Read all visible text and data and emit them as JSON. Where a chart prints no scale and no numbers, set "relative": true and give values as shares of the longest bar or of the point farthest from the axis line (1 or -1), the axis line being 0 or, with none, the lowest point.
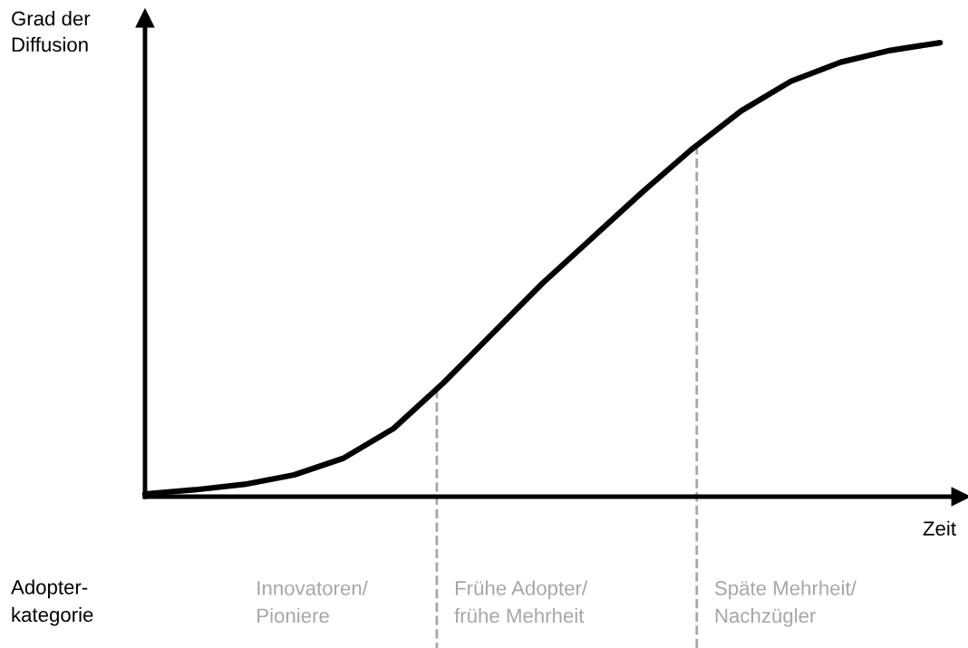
{
  "chart_data": {
    "type": "line",
    "relative": true,
    "ylabel": "Grad der\nDiffusion",
    "xlabel": "Zeit",
    "categories": [
      null,
      null,
      null,
      null,
      null,
      null,
      null,
      null,
      null,
      null,
      null,
      null,
      null,
      null,
      null,
      null,
      null
    ],
    "series": [
      {
        "color": "#000000",
        "values": [
          0.006,
          0.015,
          0.027,
          0.048,
          0.085,
          0.15,
          0.25,
          0.36,
          0.47,
          0.57,
          0.67,
          0.765,
          0.85,
          0.915,
          0.957,
          0.983,
          1.0
        ]
      }
    ],
    "annotations": [
      "Adopter-\nkategorie",
      "Innovatoren/\nPioniere",
      "Frühe Adopter/\nfrühe Mehrheit",
      "Späte Mehrheit/\nNachzügler"
    ],
    "marker": "none",
    "line_style": "solid",
    "legend": false
  }
}
